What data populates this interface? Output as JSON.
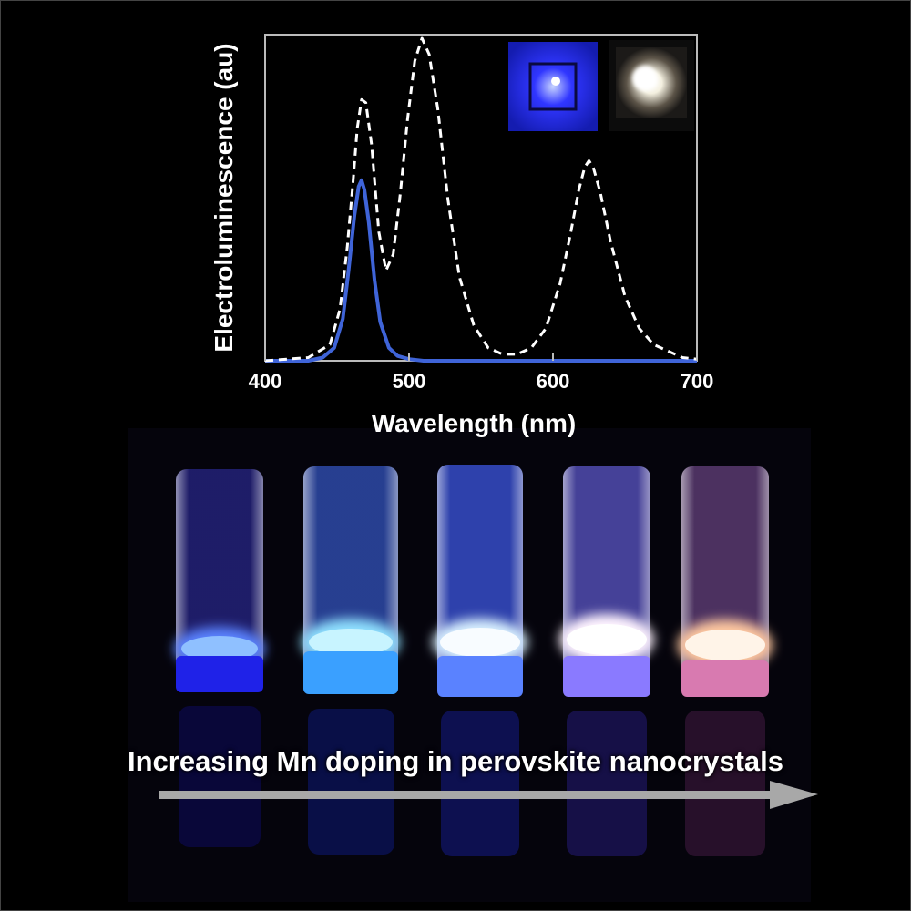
{
  "chart_data": {
    "type": "line",
    "xlabel": "Wavelength (nm)",
    "ylabel": "Electroluminescence (au)",
    "xlim": [
      400,
      700
    ],
    "ylim": [
      0,
      1
    ],
    "xticks": [
      "400",
      "500",
      "600",
      "700"
    ],
    "grid": false,
    "legend": "none",
    "series": [
      {
        "style": "solid",
        "color": "#3f64d8",
        "x": [
          400,
          430,
          440,
          448,
          454,
          458,
          462,
          465,
          467,
          469,
          472,
          476,
          480,
          486,
          492,
          500,
          510,
          530,
          560,
          600,
          650,
          700
        ],
        "y": [
          0.0,
          0.0,
          0.01,
          0.04,
          0.13,
          0.28,
          0.45,
          0.54,
          0.56,
          0.53,
          0.43,
          0.25,
          0.12,
          0.04,
          0.015,
          0.005,
          0.0,
          0.0,
          0.0,
          0.0,
          0.0,
          0.0
        ]
      },
      {
        "style": "dashed",
        "color": "#ffffff",
        "x": [
          400,
          430,
          445,
          452,
          457,
          461,
          464,
          467,
          470,
          474,
          479,
          484,
          489,
          494,
          499,
          504,
          509,
          514,
          520,
          527,
          535,
          545,
          555,
          565,
          575,
          585,
          595,
          605,
          612,
          618,
          622,
          625,
          628,
          633,
          640,
          650,
          660,
          670,
          680,
          690,
          700
        ],
        "y": [
          0.0,
          0.01,
          0.05,
          0.16,
          0.35,
          0.55,
          0.72,
          0.81,
          0.8,
          0.67,
          0.4,
          0.28,
          0.33,
          0.52,
          0.75,
          0.93,
          1.0,
          0.95,
          0.78,
          0.5,
          0.26,
          0.11,
          0.04,
          0.02,
          0.02,
          0.04,
          0.1,
          0.24,
          0.39,
          0.53,
          0.6,
          0.62,
          0.6,
          0.52,
          0.37,
          0.2,
          0.1,
          0.05,
          0.03,
          0.01,
          0.005
        ]
      }
    ],
    "caption": "Increasing Mn doping in perovskite nanocrystals"
  }
}
